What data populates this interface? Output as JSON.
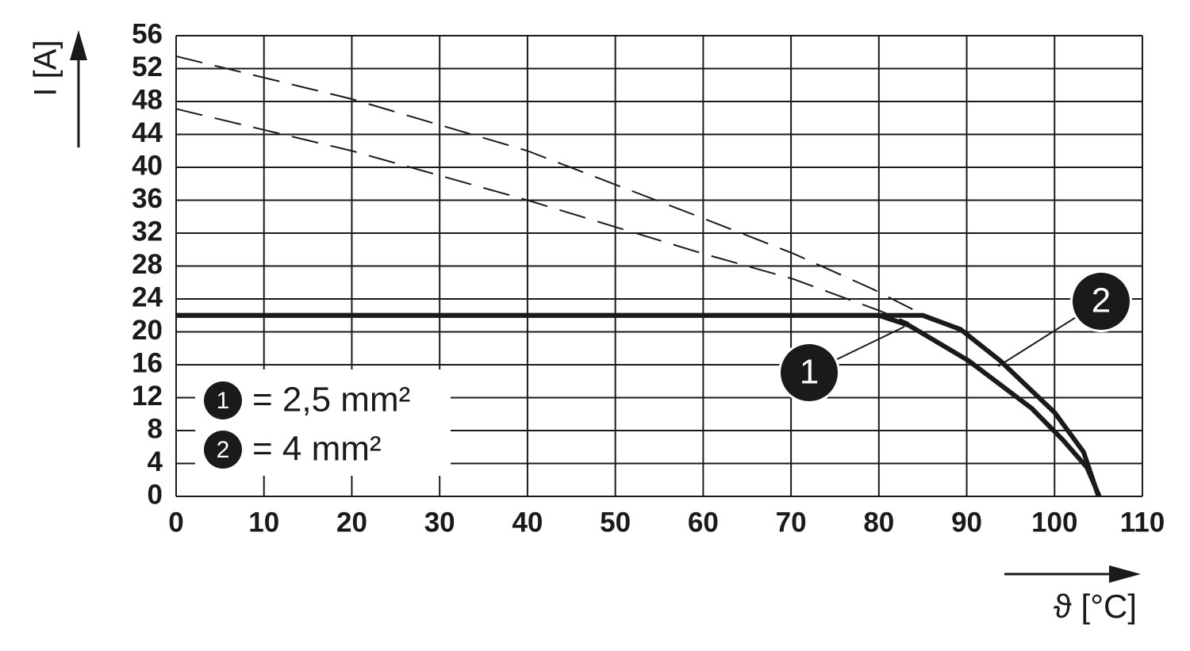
{
  "chart_data": {
    "type": "line",
    "x_label": "ϑ [°C]",
    "y_label": "I [A]",
    "xlim": [
      0,
      110
    ],
    "xticks": [
      0,
      10,
      20,
      30,
      40,
      50,
      60,
      70,
      80,
      90,
      100,
      110
    ],
    "ylim": [
      0,
      56
    ],
    "yticks": [
      0,
      4,
      8,
      12,
      16,
      20,
      24,
      28,
      32,
      36,
      40,
      44,
      48,
      52,
      56
    ],
    "grid": true,
    "series": [
      {
        "name": "1",
        "description": "= 2,5 mm²",
        "color": "#1a1a1a",
        "style": "solid",
        "x": [
          0,
          80,
          83.4,
          90.2,
          97.4,
          101,
          103.7,
          105.1
        ],
        "values": [
          22,
          22,
          20.8,
          16.5,
          10.7,
          6.8,
          3.5,
          0
        ]
      },
      {
        "name": "2",
        "description": "= 4 mm²",
        "color": "#1a1a1a",
        "style": "solid",
        "x": [
          0,
          85,
          89.3,
          93.8,
          100,
          103.3,
          105
        ],
        "values": [
          22,
          22,
          20.3,
          16.5,
          10.2,
          5.4,
          0
        ]
      },
      {
        "color": "#1a1a1a",
        "style": "dash",
        "x": [
          0,
          20,
          40,
          60,
          70.3,
          79.3,
          85.2
        ],
        "values": [
          53.5,
          48.3,
          42,
          33.8,
          29.5,
          25.2,
          22
        ]
      },
      {
        "color": "#1a1a1a",
        "style": "dash",
        "x": [
          0,
          20,
          40,
          60,
          70.3,
          80,
          83.4
        ],
        "values": [
          47.1,
          42,
          36,
          29.5,
          26.4,
          22.6,
          21.1
        ]
      }
    ]
  }
}
